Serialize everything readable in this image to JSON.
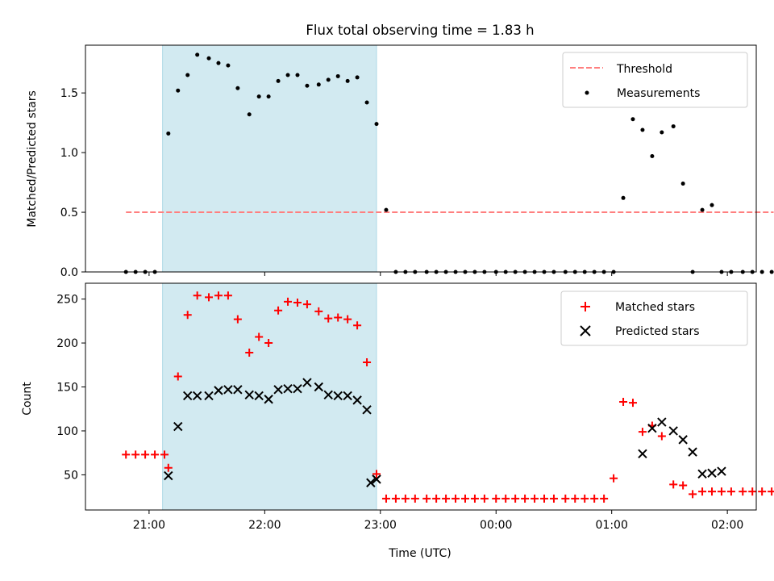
{
  "title": "Flux total observing time = 1.83 h",
  "colors": {
    "highlight": "#add8e6",
    "threshold": "#ff7f7f",
    "measurement": "#000000",
    "matched": "#ff0000",
    "predicted": "#000000"
  },
  "chart_data": [
    {
      "type": "scatter",
      "ylabel": "Matched/Predicted stars",
      "xlabel": "",
      "ylim": [
        0,
        1.9
      ],
      "yticks": [
        0.0,
        0.5,
        1.0,
        1.5
      ],
      "ytick_labels": [
        "0.0",
        "0.5",
        "1.0",
        "1.5"
      ],
      "legend": {
        "position": "upper right",
        "entries": [
          "Threshold",
          "Measurements"
        ]
      },
      "threshold": {
        "name": "Threshold",
        "value": 0.5,
        "x_range": [
          "20:48",
          "02:24"
        ]
      },
      "highlight_span": [
        "21:07",
        "22:58"
      ],
      "series": [
        {
          "name": "Measurements",
          "marker": "dot",
          "x": [
            "20:48",
            "20:53",
            "20:58",
            "21:03",
            "21:10",
            "21:15",
            "21:20",
            "21:25",
            "21:31",
            "21:36",
            "21:41",
            "21:46",
            "21:52",
            "21:57",
            "22:02",
            "22:07",
            "22:12",
            "22:17",
            "22:22",
            "22:28",
            "22:33",
            "22:38",
            "22:43",
            "22:48",
            "22:53",
            "22:58",
            "23:03",
            "23:08",
            "23:13",
            "23:18",
            "23:24",
            "23:29",
            "23:34",
            "23:39",
            "23:44",
            "23:49",
            "23:54",
            "00:00",
            "00:05",
            "00:10",
            "00:15",
            "00:20",
            "00:25",
            "00:30",
            "00:36",
            "00:41",
            "00:46",
            "00:51",
            "00:56",
            "01:01",
            "01:06",
            "01:11",
            "01:16",
            "01:21",
            "01:26",
            "01:32",
            "01:37",
            "01:42",
            "01:47",
            "01:52",
            "01:57",
            "02:02",
            "02:08",
            "02:13",
            "02:18",
            "02:23"
          ],
          "y": [
            0,
            0,
            0,
            0,
            1.16,
            1.52,
            1.65,
            1.82,
            1.79,
            1.75,
            1.73,
            1.54,
            1.32,
            1.47,
            1.47,
            1.6,
            1.65,
            1.65,
            1.56,
            1.57,
            1.61,
            1.64,
            1.6,
            1.63,
            1.42,
            1.24,
            0.52,
            0,
            0,
            0,
            0,
            0,
            0,
            0,
            0,
            0,
            0,
            0,
            0,
            0,
            0,
            0,
            0,
            0,
            0,
            0,
            0,
            0,
            0,
            0,
            0.62,
            1.28,
            1.19,
            0.97,
            1.17,
            1.22,
            0.74,
            0,
            0.52,
            0.56,
            0,
            0,
            0,
            0,
            0,
            0
          ]
        }
      ]
    },
    {
      "type": "scatter",
      "ylabel": "Count",
      "xlabel": "Time (UTC)",
      "ylim": [
        10,
        268
      ],
      "yticks": [
        50,
        100,
        150,
        200,
        250
      ],
      "ytick_labels": [
        "50",
        "100",
        "150",
        "200",
        "250"
      ],
      "xticks": [
        "21:00",
        "22:00",
        "23:00",
        "00:00",
        "01:00",
        "02:00"
      ],
      "legend": {
        "position": "upper right",
        "entries": [
          "Matched stars",
          "Predicted stars"
        ]
      },
      "highlight_span": [
        "21:07",
        "22:58"
      ],
      "series": [
        {
          "name": "Matched stars",
          "marker": "plus",
          "x": [
            "20:48",
            "20:53",
            "20:58",
            "21:03",
            "21:08",
            "21:10",
            "21:15",
            "21:20",
            "21:25",
            "21:31",
            "21:36",
            "21:41",
            "21:46",
            "21:52",
            "21:57",
            "22:02",
            "22:07",
            "22:12",
            "22:17",
            "22:22",
            "22:28",
            "22:33",
            "22:38",
            "22:43",
            "22:48",
            "22:53",
            "22:58",
            "23:03",
            "23:08",
            "23:13",
            "23:18",
            "23:24",
            "23:29",
            "23:34",
            "23:39",
            "23:44",
            "23:49",
            "23:54",
            "00:00",
            "00:05",
            "00:10",
            "00:15",
            "00:20",
            "00:25",
            "00:30",
            "00:36",
            "00:41",
            "00:46",
            "00:51",
            "00:56",
            "01:01",
            "01:06",
            "01:11",
            "01:16",
            "01:21",
            "01:26",
            "01:32",
            "01:37",
            "01:42",
            "01:47",
            "01:52",
            "01:57",
            "02:02",
            "02:08",
            "02:13",
            "02:18",
            "02:23"
          ],
          "y": [
            73,
            73,
            73,
            73,
            73,
            58,
            162,
            232,
            254,
            252,
            254,
            254,
            227,
            189,
            207,
            200,
            237,
            247,
            246,
            244,
            236,
            228,
            229,
            227,
            220,
            178,
            51,
            23,
            23,
            23,
            23,
            23,
            23,
            23,
            23,
            23,
            23,
            23,
            23,
            23,
            23,
            23,
            23,
            23,
            23,
            23,
            23,
            23,
            23,
            23,
            46,
            133,
            132,
            99,
            106,
            94,
            39,
            38,
            28,
            31,
            31,
            31,
            31,
            31,
            31,
            31,
            31
          ]
        },
        {
          "name": "Predicted stars",
          "marker": "x",
          "x": [
            "21:10",
            "21:15",
            "21:20",
            "21:25",
            "21:31",
            "21:36",
            "21:41",
            "21:46",
            "21:52",
            "21:57",
            "22:02",
            "22:07",
            "22:12",
            "22:17",
            "22:22",
            "22:28",
            "22:33",
            "22:38",
            "22:43",
            "22:48",
            "22:53",
            "22:55",
            "22:58",
            "01:16",
            "01:21",
            "01:26",
            "01:32",
            "01:37",
            "01:42",
            "01:47",
            "01:52",
            "01:57"
          ],
          "y": [
            49,
            105,
            140,
            140,
            140,
            146,
            147,
            147,
            141,
            140,
            136,
            147,
            148,
            148,
            155,
            150,
            141,
            140,
            140,
            135,
            124,
            41,
            45,
            74,
            103,
            110,
            100,
            90,
            76,
            51,
            52,
            54
          ]
        }
      ]
    }
  ]
}
